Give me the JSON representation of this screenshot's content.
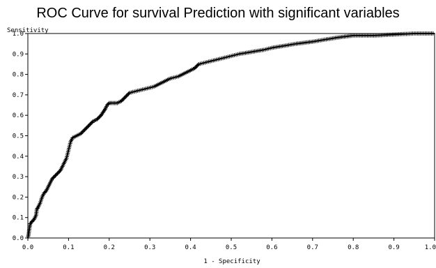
{
  "chart_data": {
    "type": "line",
    "title": "ROC Curve for survival Prediction with significant variables",
    "xlabel": "1 - Specificity",
    "ylabel": "Sensitivity",
    "xlim": [
      0.0,
      1.0
    ],
    "ylim": [
      0.0,
      1.0
    ],
    "x_ticks": [
      "0.0",
      "0.1",
      "0.2",
      "0.3",
      "0.4",
      "0.5",
      "0.6",
      "0.7",
      "0.8",
      "0.9",
      "1.0"
    ],
    "y_ticks": [
      "0.0",
      "0.1",
      "0.2",
      "0.3",
      "0.4",
      "0.5",
      "0.6",
      "0.7",
      "0.8",
      "0.9",
      "1.0"
    ],
    "marker": "plus",
    "color": "#000000",
    "series": [
      {
        "points": [
          [
            0.0,
            0.0
          ],
          [
            0.002,
            0.02
          ],
          [
            0.004,
            0.05
          ],
          [
            0.006,
            0.07
          ],
          [
            0.01,
            0.08
          ],
          [
            0.015,
            0.09
          ],
          [
            0.02,
            0.11
          ],
          [
            0.022,
            0.14
          ],
          [
            0.025,
            0.15
          ],
          [
            0.03,
            0.17
          ],
          [
            0.035,
            0.2
          ],
          [
            0.04,
            0.22
          ],
          [
            0.045,
            0.23
          ],
          [
            0.05,
            0.25
          ],
          [
            0.055,
            0.27
          ],
          [
            0.06,
            0.29
          ],
          [
            0.065,
            0.3
          ],
          [
            0.07,
            0.31
          ],
          [
            0.08,
            0.33
          ],
          [
            0.085,
            0.35
          ],
          [
            0.09,
            0.37
          ],
          [
            0.095,
            0.39
          ],
          [
            0.1,
            0.43
          ],
          [
            0.105,
            0.47
          ],
          [
            0.11,
            0.49
          ],
          [
            0.12,
            0.5
          ],
          [
            0.13,
            0.51
          ],
          [
            0.14,
            0.53
          ],
          [
            0.15,
            0.55
          ],
          [
            0.16,
            0.57
          ],
          [
            0.17,
            0.58
          ],
          [
            0.18,
            0.6
          ],
          [
            0.19,
            0.63
          ],
          [
            0.195,
            0.65
          ],
          [
            0.2,
            0.66
          ],
          [
            0.21,
            0.66
          ],
          [
            0.22,
            0.66
          ],
          [
            0.23,
            0.67
          ],
          [
            0.24,
            0.69
          ],
          [
            0.25,
            0.71
          ],
          [
            0.27,
            0.72
          ],
          [
            0.29,
            0.73
          ],
          [
            0.31,
            0.74
          ],
          [
            0.33,
            0.76
          ],
          [
            0.35,
            0.78
          ],
          [
            0.37,
            0.79
          ],
          [
            0.39,
            0.81
          ],
          [
            0.41,
            0.83
          ],
          [
            0.42,
            0.85
          ],
          [
            0.44,
            0.86
          ],
          [
            0.46,
            0.87
          ],
          [
            0.48,
            0.88
          ],
          [
            0.5,
            0.89
          ],
          [
            0.52,
            0.9
          ],
          [
            0.55,
            0.91
          ],
          [
            0.58,
            0.92
          ],
          [
            0.6,
            0.93
          ],
          [
            0.63,
            0.94
          ],
          [
            0.66,
            0.95
          ],
          [
            0.7,
            0.96
          ],
          [
            0.73,
            0.97
          ],
          [
            0.76,
            0.98
          ],
          [
            0.8,
            0.99
          ],
          [
            0.85,
            0.99
          ],
          [
            0.9,
            0.995
          ],
          [
            0.95,
            1.0
          ],
          [
            1.0,
            1.0
          ]
        ]
      }
    ]
  }
}
